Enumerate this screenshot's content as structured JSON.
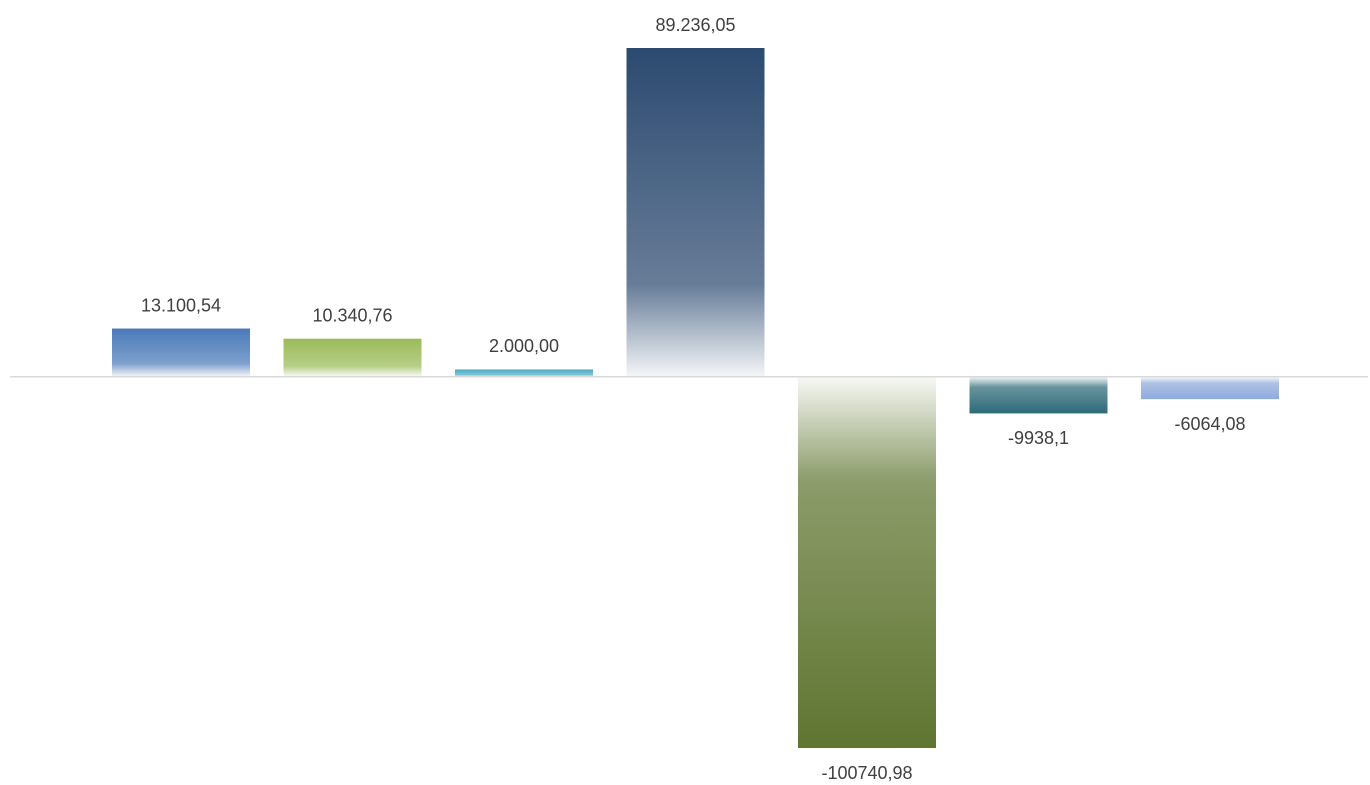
{
  "chart_data": {
    "type": "bar",
    "categories": [
      null,
      null,
      null,
      null,
      null,
      null,
      null
    ],
    "values": [
      13100.54,
      10340.76,
      2000,
      89236.05,
      -100740.98,
      -9938.1,
      -6064.08
    ],
    "value_labels": [
      "13.100,54",
      "10.340,76",
      "2.000,00",
      "89.236,05",
      "-100740,98",
      "-9938,1",
      "-6064,08"
    ],
    "colors": [
      "#4a7ab8",
      "#9bbb59",
      "#4bacc6",
      "#2c4a70",
      "#5f7530",
      "#2e6a78",
      "#8faadc"
    ]
  }
}
